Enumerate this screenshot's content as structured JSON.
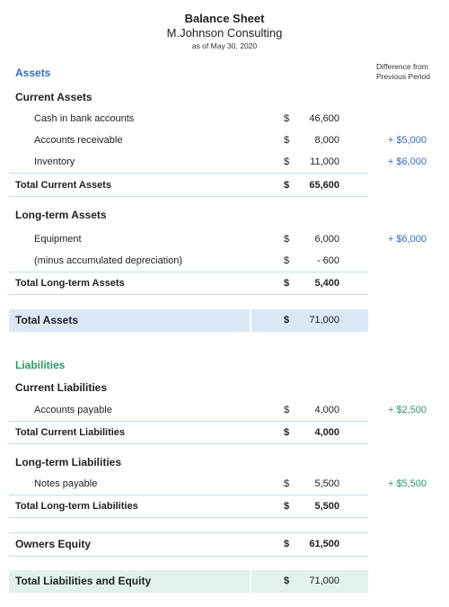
{
  "header": {
    "title": "Balance Sheet",
    "company": "M.Johnson Consulting",
    "date": "as of May 30, 2020"
  },
  "difference_header": [
    "Difference from",
    "Previous Period"
  ],
  "assets": {
    "title": "Assets",
    "current": {
      "title": "Current Assets",
      "items": [
        {
          "label": "Cash in bank accounts",
          "currency": "$",
          "amount": "46,600",
          "diff": ""
        },
        {
          "label": "Accounts receivable",
          "currency": "$",
          "amount": "8,000",
          "diff": "+ $5,000"
        },
        {
          "label": "Inventory",
          "currency": "$",
          "amount": "11,000",
          "diff": "+ $6,000"
        }
      ],
      "total": {
        "label": "Total Current Assets",
        "currency": "$",
        "amount": "65,600"
      }
    },
    "longterm": {
      "title": "Long-term Assets",
      "items": [
        {
          "label": "Equipment",
          "currency": "$",
          "amount": "6,000",
          "diff": "+ $6,000"
        },
        {
          "label": "(minus accumulated depreciation)",
          "currency": "$",
          "amount": "- 600",
          "diff": ""
        }
      ],
      "total": {
        "label": "Total Long-term Assets",
        "currency": "$",
        "amount": "5,400"
      }
    },
    "total": {
      "label": "Total Assets",
      "currency": "$",
      "amount": "71,000"
    }
  },
  "liabilities": {
    "title": "Liabilities",
    "current": {
      "title": "Current Liabilities",
      "items": [
        {
          "label": "Accounts payable",
          "currency": "$",
          "amount": "4,000",
          "diff": "+ $2,500"
        }
      ],
      "total": {
        "label": "Total Current Liabilities",
        "currency": "$",
        "amount": "4,000"
      }
    },
    "longterm": {
      "title": "Long-term Liabilities",
      "items": [
        {
          "label": "Notes payable",
          "currency": "$",
          "amount": "5,500",
          "diff": "+ $5,500"
        }
      ],
      "total": {
        "label": "Total Long-term Liabilities",
        "currency": "$",
        "amount": "5,500"
      }
    }
  },
  "equity": {
    "label": "Owners Equity",
    "currency": "$",
    "amount": "61,500"
  },
  "total_liabilities_equity": {
    "label": "Total Liabilities and Equity",
    "currency": "$",
    "amount": "71,000"
  },
  "colors": {
    "assets_accent": "#2e6fc4",
    "liabilities_accent": "#279a64",
    "assets_band": "#dbe7f5",
    "liabilities_band": "#e2f2ea",
    "separator": "#c6dcee"
  }
}
